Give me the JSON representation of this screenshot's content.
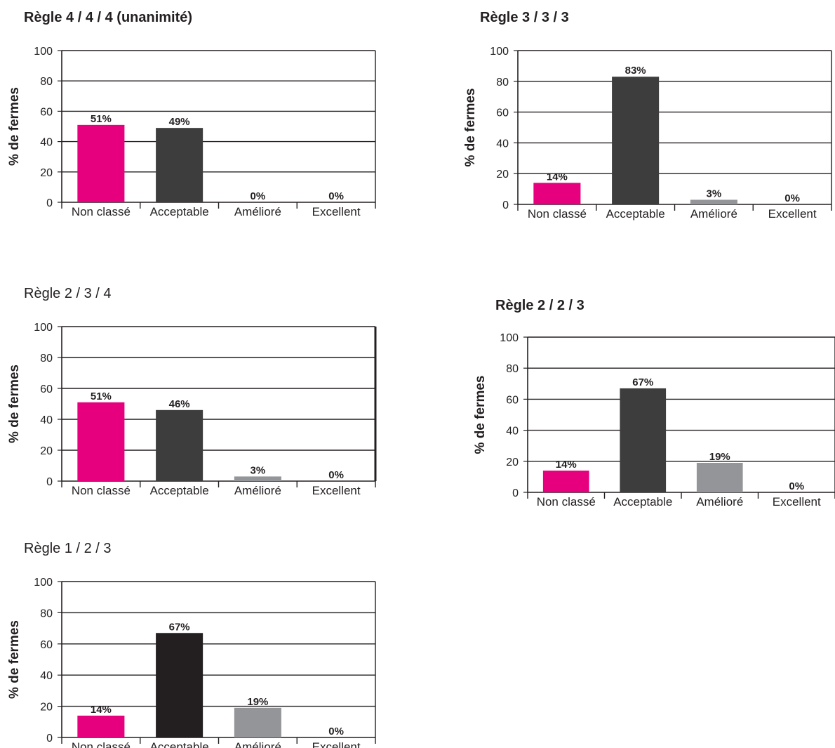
{
  "colors": {
    "non_classe": "#e6007e",
    "acceptable": "#3d3d3d",
    "acceptable_dark": "#231f20",
    "ameliore": "#939598",
    "axis": "#231f20"
  },
  "chart_data": [
    {
      "type": "bar",
      "title": "Règle 4 / 4 / 4 (unanimité)",
      "title_bold": true,
      "ylabel": "% de fermes",
      "categories": [
        "Non classé",
        "Acceptable",
        "Amélioré",
        "Excellent"
      ],
      "values": [
        51,
        49,
        0,
        0
      ],
      "data_labels": [
        "51%",
        "49%",
        "0%",
        "0%"
      ],
      "yticks": [
        "0",
        "20",
        "40",
        "60",
        "80",
        "100"
      ],
      "ylim": [
        0,
        100
      ],
      "grid": true,
      "bar_colors": [
        "#e6007e",
        "#3d3d3d",
        "#939598",
        "#939598"
      ]
    },
    {
      "type": "bar",
      "title": "Règle 3 / 3 / 3",
      "title_bold": true,
      "ylabel": "% de fermes",
      "categories": [
        "Non classé",
        "Acceptable",
        "Amélioré",
        "Excellent"
      ],
      "values": [
        14,
        83,
        3,
        0
      ],
      "data_labels": [
        "14%",
        "83%",
        "3%",
        "0%"
      ],
      "yticks": [
        "0",
        "20",
        "40",
        "60",
        "80",
        "100"
      ],
      "ylim": [
        0,
        100
      ],
      "grid": true,
      "bar_colors": [
        "#e6007e",
        "#3d3d3d",
        "#939598",
        "#939598"
      ]
    },
    {
      "type": "bar",
      "title": "Règle 2 / 3 / 4",
      "title_bold": false,
      "ylabel": "% de fermes",
      "categories": [
        "Non classé",
        "Acceptable",
        "Amélioré",
        "Excellent"
      ],
      "values": [
        51,
        46,
        3,
        0
      ],
      "data_labels": [
        "51%",
        "46%",
        "3%",
        "0%"
      ],
      "yticks": [
        "0",
        "20",
        "40",
        "60",
        "80",
        "100"
      ],
      "ylim": [
        0,
        100
      ],
      "grid": true,
      "bar_colors": [
        "#e6007e",
        "#3d3d3d",
        "#939598",
        "#939598"
      ]
    },
    {
      "type": "bar",
      "title": "Règle 2 / 2 / 3",
      "title_bold": true,
      "ylabel": "% de fermes",
      "categories": [
        "Non classé",
        "Acceptable",
        "Amélioré",
        "Excellent"
      ],
      "values": [
        14,
        67,
        19,
        0
      ],
      "data_labels": [
        "14%",
        "67%",
        "19%",
        "0%"
      ],
      "yticks": [
        "0",
        "20",
        "40",
        "60",
        "80",
        "100"
      ],
      "ylim": [
        0,
        100
      ],
      "grid": true,
      "bar_colors": [
        "#e6007e",
        "#3d3d3d",
        "#939598",
        "#939598"
      ]
    },
    {
      "type": "bar",
      "title": "Règle 1 / 2 / 3",
      "title_bold": false,
      "ylabel": "% de fermes",
      "categories": [
        "Non classé",
        "Acceptable",
        "Amélioré",
        "Excellent"
      ],
      "values": [
        14,
        67,
        19,
        0
      ],
      "data_labels": [
        "14%",
        "67%",
        "19%",
        "0%"
      ],
      "yticks": [
        "0",
        "20",
        "40",
        "60",
        "80",
        "100"
      ],
      "ylim": [
        0,
        100
      ],
      "grid": true,
      "bar_colors": [
        "#e6007e",
        "#231f20",
        "#939598",
        "#939598"
      ]
    }
  ]
}
